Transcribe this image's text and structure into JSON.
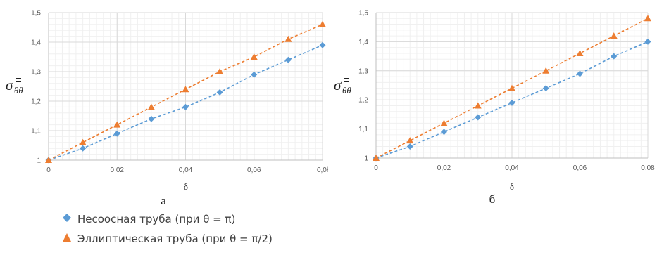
{
  "chart_data": [
    {
      "type": "line",
      "panel_label": "а",
      "xlabel": "δ",
      "ylabel": "σ",
      "ylabel_subscript": "θθ",
      "xlim": [
        0,
        0.08
      ],
      "ylim": [
        1,
        1.5
      ],
      "x_ticks": [
        "0",
        "0,02",
        "0,04",
        "0,06",
        "0,0ł"
      ],
      "y_ticks": [
        "1",
        "1,1",
        "1,2",
        "1,3",
        "1,4",
        "1,5"
      ],
      "grid": true,
      "x": [
        0,
        0.01,
        0.02,
        0.03,
        0.04,
        0.05,
        0.06,
        0.07,
        0.08
      ],
      "series": [
        {
          "name": "Несоосная труба (при θ = π)",
          "marker": "diamond",
          "color": "#5b9bd5",
          "values": [
            1.0,
            1.04,
            1.09,
            1.14,
            1.18,
            1.23,
            1.29,
            1.34,
            1.39
          ]
        },
        {
          "name": "Эллиптическая труба (при θ = π/2)",
          "marker": "triangle",
          "color": "#ed7d31",
          "values": [
            1.0,
            1.06,
            1.12,
            1.18,
            1.24,
            1.3,
            1.35,
            1.41,
            1.46
          ]
        }
      ]
    },
    {
      "type": "line",
      "panel_label": "б",
      "xlabel": "δ",
      "ylabel": "σ",
      "ylabel_subscript": "θθ",
      "xlim": [
        0,
        0.08
      ],
      "ylim": [
        1,
        1.5
      ],
      "x_ticks": [
        "0",
        "0,02",
        "0,04",
        "0,06",
        "0,08"
      ],
      "y_ticks": [
        "1",
        "1,1",
        "1,2",
        "1,3",
        "1,4",
        "1,5"
      ],
      "grid": true,
      "x": [
        0,
        0.01,
        0.02,
        0.03,
        0.04,
        0.05,
        0.06,
        0.07,
        0.08
      ],
      "series": [
        {
          "name": "Несоосная труба (при θ = π)",
          "marker": "diamond",
          "color": "#5b9bd5",
          "values": [
            1.0,
            1.04,
            1.09,
            1.14,
            1.19,
            1.24,
            1.29,
            1.35,
            1.4
          ]
        },
        {
          "name": "Эллиптическая труба (при θ = π/2)",
          "marker": "triangle",
          "color": "#ed7d31",
          "values": [
            1.0,
            1.06,
            1.12,
            1.18,
            1.24,
            1.3,
            1.36,
            1.42,
            1.48
          ]
        }
      ]
    }
  ],
  "legend": [
    {
      "label": "Несоосная труба (при θ = π)",
      "marker": "diamond",
      "color": "#5b9bd5"
    },
    {
      "label": "Эллиптическая труба (при θ = π/2)",
      "marker": "triangle",
      "color": "#ed7d31"
    }
  ]
}
